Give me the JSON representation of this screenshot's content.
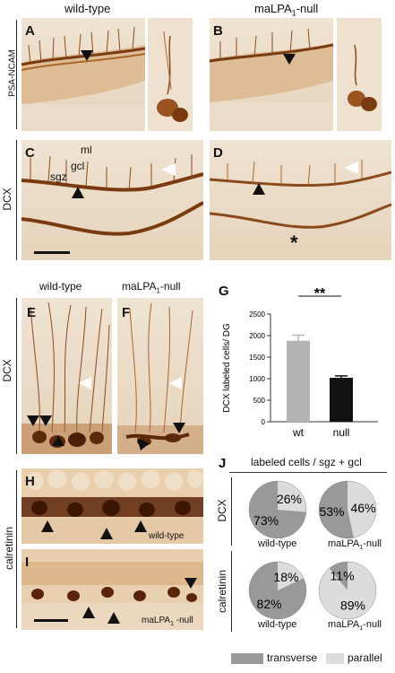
{
  "headers": {
    "top_wt": "wild-type",
    "top_null_prefix": "maLPA",
    "top_null_sub": "1",
    "top_null_suffix": "-null",
    "mid_wt": "wild-type",
    "mid_null_prefix": "maLPA",
    "mid_null_sub": "1",
    "mid_null_suffix": "-null"
  },
  "row_labels": {
    "psa_ncam": "PSA-NCAM",
    "dcx_top": "DCX",
    "dcx_mid": "DCX",
    "calretinin": "calretinin",
    "dcx_pie": "DCX",
    "calretinin_pie": "calretinin"
  },
  "panels": {
    "A": "A",
    "B": "B",
    "C": "C",
    "D": "D",
    "E": "E",
    "F": "F",
    "G": "G",
    "H": "H",
    "I": "I",
    "J": "J"
  },
  "layer_labels": {
    "ml": "ml",
    "gcl": "gcl",
    "sgz": "sgz"
  },
  "overlays": {
    "asterisk": "*",
    "H_genotype": "wild-type",
    "I_genotype_prefix": "maLPA",
    "I_genotype_sub": "1",
    "I_genotype_suffix": " -null"
  },
  "colors": {
    "tissue_bg": "#eddcc6",
    "stain_dark": "#7a3a10",
    "stain_mid": "#a9652c",
    "bar_wt": "#b3b3b3",
    "bar_null": "#111111",
    "pie_transverse": "#999999",
    "pie_parallel": "#dcdcdc"
  },
  "chart_data": [
    {
      "type": "bar",
      "panel": "G",
      "ylabel": "DCX labeled cells/ DG",
      "categories": [
        "wt",
        "null"
      ],
      "values": [
        1880,
        1020
      ],
      "errors": [
        130,
        45
      ],
      "ylim": [
        0,
        2500
      ],
      "yticks": [
        0,
        500,
        1000,
        1500,
        2000,
        2500
      ],
      "significance": "**"
    },
    {
      "type": "pie",
      "panel": "J",
      "title": "labeled cells / sgz + gcl",
      "legend": [
        "transverse",
        "parallel"
      ],
      "pies": [
        {
          "row": "DCX",
          "genotype": "wild-type",
          "transverse": 73,
          "parallel": 26,
          "transverse_label": "73%",
          "parallel_label": "26%"
        },
        {
          "row": "DCX",
          "genotype": "maLPA1-null",
          "transverse": 53,
          "parallel": 46,
          "transverse_label": "53%",
          "parallel_label": "46%"
        },
        {
          "row": "calretinin",
          "genotype": "wild-type",
          "transverse": 82,
          "parallel": 18,
          "transverse_label": "82%",
          "parallel_label": "18%"
        },
        {
          "row": "calretinin",
          "genotype": "maLPA1-null",
          "transverse": 11,
          "parallel": 89,
          "transverse_label": "11%",
          "parallel_label": "89%"
        }
      ]
    }
  ],
  "pie_captions": {
    "wt_dcx": "wild-type",
    "null_dcx_prefix": "maLPA",
    "null_dcx_sub": "1",
    "null_dcx_suffix": "-null",
    "wt_cal": "wild-type",
    "null_cal_prefix": "maLPA",
    "null_cal_sub": "1",
    "null_cal_suffix": "-null"
  },
  "legend": {
    "transverse": "transverse",
    "parallel": "parallel"
  }
}
